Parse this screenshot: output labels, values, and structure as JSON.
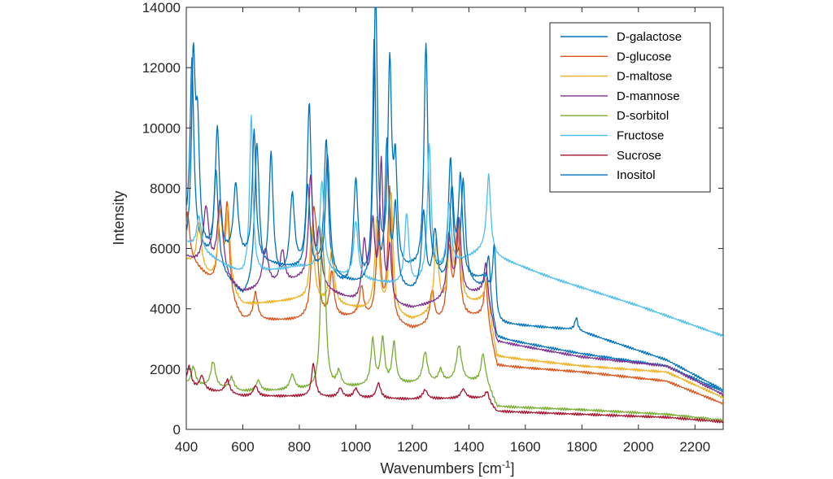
{
  "chart_data": {
    "type": "line",
    "title": "",
    "xlabel": "Wavenumbers [cm",
    "xlabel_sup": "-1",
    "xlabel_close": "]",
    "ylabel": "Intensity",
    "xlim": [
      400,
      2300
    ],
    "ylim": [
      0,
      14000
    ],
    "x_ticks": [
      "400",
      "600",
      "800",
      "1000",
      "1200",
      "1400",
      "1600",
      "1800",
      "2000",
      "2200"
    ],
    "y_ticks": [
      "0",
      "2000",
      "4000",
      "6000",
      "8000",
      "10000",
      "12000",
      "14000"
    ],
    "grid": false,
    "legend_position": "top-right",
    "series": [
      {
        "name": "D-galactose",
        "color": "#0072BD",
        "base": [
          [
            400,
            6500
          ],
          [
            600,
            4300
          ],
          [
            800,
            5100
          ],
          [
            1000,
            4500
          ],
          [
            1200,
            5200
          ],
          [
            1460,
            4600
          ],
          [
            1500,
            3000
          ],
          [
            1800,
            2500
          ],
          [
            2100,
            2100
          ],
          [
            2300,
            1250
          ]
        ],
        "peaks": [
          [
            420,
            6000,
            8
          ],
          [
            505,
            3200,
            9
          ],
          [
            650,
            4800,
            10
          ],
          [
            700,
            4200,
            9
          ],
          [
            775,
            2600,
            10
          ],
          [
            835,
            5600,
            9
          ],
          [
            895,
            4600,
            9
          ],
          [
            1000,
            3600,
            10
          ],
          [
            1070,
            9600,
            8
          ],
          [
            1120,
            6800,
            8
          ],
          [
            1140,
            3300,
            8
          ],
          [
            1248,
            7600,
            8
          ],
          [
            1335,
            3900,
            9
          ],
          [
            1380,
            3300,
            9
          ],
          [
            1470,
            1500,
            7
          ]
        ]
      },
      {
        "name": "D-glucose",
        "color": "#D95319",
        "base": [
          [
            400,
            5800
          ],
          [
            600,
            3600
          ],
          [
            800,
            3600
          ],
          [
            1000,
            3700
          ],
          [
            1200,
            3300
          ],
          [
            1460,
            3800
          ],
          [
            1500,
            2100
          ],
          [
            1800,
            1900
          ],
          [
            2100,
            1600
          ],
          [
            2300,
            850
          ]
        ],
        "peaks": [
          [
            405,
            1400,
            8
          ],
          [
            520,
            2500,
            10
          ],
          [
            545,
            3000,
            9
          ],
          [
            645,
            900,
            9
          ],
          [
            850,
            2900,
            9
          ],
          [
            860,
            1700,
            9
          ],
          [
            915,
            1500,
            9
          ],
          [
            1020,
            1000,
            9
          ],
          [
            1080,
            3200,
            9
          ],
          [
            1120,
            4400,
            8
          ],
          [
            1270,
            1100,
            9
          ],
          [
            1330,
            2300,
            9
          ],
          [
            1360,
            3200,
            9
          ],
          [
            1460,
            1100,
            7
          ]
        ]
      },
      {
        "name": "D-maltose",
        "color": "#EDB120",
        "base": [
          [
            400,
            5600
          ],
          [
            600,
            4100
          ],
          [
            800,
            4300
          ],
          [
            1000,
            4000
          ],
          [
            1200,
            3600
          ],
          [
            1460,
            4300
          ],
          [
            1500,
            2400
          ],
          [
            1800,
            2100
          ],
          [
            2100,
            1900
          ],
          [
            2300,
            1050
          ]
        ],
        "peaks": [
          [
            445,
            1500,
            10
          ],
          [
            520,
            2300,
            10
          ],
          [
            548,
            2600,
            9
          ],
          [
            845,
            2500,
            9
          ],
          [
            915,
            1900,
            9
          ],
          [
            1075,
            3100,
            9
          ],
          [
            1125,
            4000,
            8
          ],
          [
            1285,
            2400,
            9
          ],
          [
            1335,
            2800,
            9
          ],
          [
            1365,
            2400,
            9
          ],
          [
            1465,
            900,
            7
          ]
        ]
      },
      {
        "name": "D-mannose",
        "color": "#7E2F8E",
        "base": [
          [
            400,
            5700
          ],
          [
            600,
            4500
          ],
          [
            800,
            4900
          ],
          [
            1000,
            4200
          ],
          [
            1200,
            4000
          ],
          [
            1460,
            4600
          ],
          [
            1500,
            2900
          ],
          [
            1800,
            2400
          ],
          [
            2100,
            2100
          ],
          [
            2300,
            1150
          ]
        ],
        "peaks": [
          [
            470,
            2000,
            12
          ],
          [
            520,
            2500,
            12
          ],
          [
            680,
            1300,
            12
          ],
          [
            740,
            1100,
            10
          ],
          [
            840,
            3500,
            9
          ],
          [
            870,
            1800,
            9
          ],
          [
            1030,
            1900,
            9
          ],
          [
            1060,
            2500,
            9
          ],
          [
            1090,
            4600,
            7
          ],
          [
            1120,
            1800,
            7
          ],
          [
            1330,
            2100,
            9
          ],
          [
            1365,
            2500,
            9
          ],
          [
            1460,
            900,
            7
          ]
        ]
      },
      {
        "name": "D-sorbitol",
        "color": "#77AC30",
        "base": [
          [
            400,
            1500
          ],
          [
            600,
            1250
          ],
          [
            800,
            1300
          ],
          [
            1000,
            1400
          ],
          [
            1150,
            1500
          ],
          [
            1460,
            1600
          ],
          [
            1500,
            750
          ],
          [
            1800,
            650
          ],
          [
            2100,
            500
          ],
          [
            2300,
            300
          ]
        ],
        "peaks": [
          [
            425,
            600,
            9
          ],
          [
            495,
            850,
            10
          ],
          [
            560,
            400,
            10
          ],
          [
            655,
            350,
            9
          ],
          [
            775,
            500,
            10
          ],
          [
            880,
            4100,
            7
          ],
          [
            890,
            2500,
            8
          ],
          [
            940,
            500,
            9
          ],
          [
            1060,
            1500,
            8
          ],
          [
            1095,
            1500,
            8
          ],
          [
            1135,
            1350,
            8
          ],
          [
            1245,
            1000,
            10
          ],
          [
            1300,
            400,
            9
          ],
          [
            1365,
            1200,
            11
          ],
          [
            1450,
            900,
            8
          ]
        ]
      },
      {
        "name": "Fructose",
        "color": "#4DBEEE",
        "base": [
          [
            400,
            6200
          ],
          [
            600,
            5100
          ],
          [
            800,
            5400
          ],
          [
            1000,
            5000
          ],
          [
            1200,
            4700
          ],
          [
            1460,
            6000
          ],
          [
            1500,
            5700
          ],
          [
            1700,
            5000
          ],
          [
            2000,
            4100
          ],
          [
            2300,
            3100
          ]
        ],
        "peaks": [
          [
            445,
            1100,
            10
          ],
          [
            630,
            5300,
            7
          ],
          [
            880,
            3000,
            9
          ],
          [
            1000,
            1900,
            9
          ],
          [
            1180,
            2400,
            9
          ],
          [
            1260,
            4400,
            8
          ],
          [
            1330,
            2100,
            9
          ],
          [
            1470,
            2500,
            8
          ]
        ]
      },
      {
        "name": "Sucrose",
        "color": "#A2142F",
        "base": [
          [
            400,
            1400
          ],
          [
            600,
            1100
          ],
          [
            800,
            1100
          ],
          [
            1000,
            1050
          ],
          [
            1200,
            1000
          ],
          [
            1460,
            1050
          ],
          [
            1500,
            600
          ],
          [
            1800,
            500
          ],
          [
            2100,
            400
          ],
          [
            2300,
            250
          ]
        ],
        "peaks": [
          [
            410,
            700,
            9
          ],
          [
            455,
            450,
            9
          ],
          [
            545,
            450,
            10
          ],
          [
            645,
            350,
            9
          ],
          [
            850,
            1100,
            8
          ],
          [
            945,
            300,
            9
          ],
          [
            1000,
            300,
            9
          ],
          [
            1080,
            500,
            9
          ],
          [
            1245,
            300,
            10
          ],
          [
            1380,
            300,
            10
          ],
          [
            1465,
            250,
            7
          ]
        ]
      },
      {
        "name": "Inositol",
        "color": "#0072BD",
        "base": [
          [
            400,
            5800
          ],
          [
            600,
            5600
          ],
          [
            800,
            5300
          ],
          [
            1000,
            4800
          ],
          [
            1200,
            4500
          ],
          [
            1460,
            5000
          ],
          [
            1500,
            3500
          ],
          [
            1780,
            3300
          ],
          [
            2100,
            2300
          ],
          [
            2300,
            1300
          ]
        ],
        "peaks": [
          [
            425,
            6200,
            8
          ],
          [
            440,
            3700,
            8
          ],
          [
            510,
            4200,
            9
          ],
          [
            575,
            2400,
            10
          ],
          [
            640,
            4300,
            8
          ],
          [
            830,
            2800,
            9
          ],
          [
            900,
            4000,
            9
          ],
          [
            1065,
            8200,
            7
          ],
          [
            1110,
            4600,
            8
          ],
          [
            1140,
            2600,
            8
          ],
          [
            1240,
            2500,
            9
          ],
          [
            1280,
            1800,
            9
          ],
          [
            1340,
            3000,
            9
          ],
          [
            1370,
            3400,
            9
          ],
          [
            1490,
            2200,
            7
          ],
          [
            1780,
            400,
            6
          ]
        ]
      }
    ]
  }
}
